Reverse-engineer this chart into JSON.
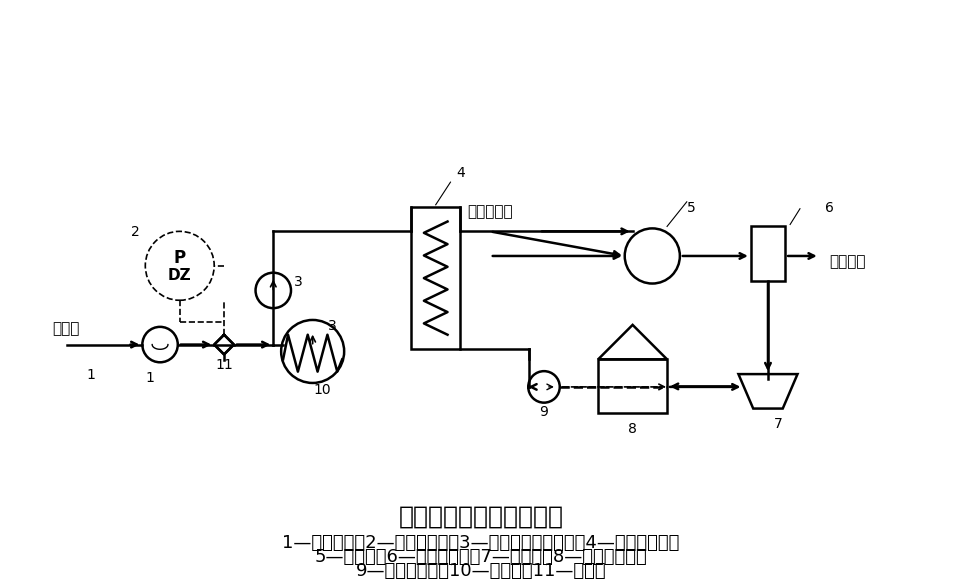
{
  "title": "氨水余热回收工艺流程图",
  "title_fontsize": 18,
  "legend_line1": "1—补给水泵；2—压力继电器；3—余热回收循环水泵；4—氨水冷却器；",
  "legend_line2": "5—集气罐；6—气液分离器；7—沉清槽；8—氨水中间槽；",
  "legend_line3": "9—氨水循环泵；10—热用户；11—电磁阀",
  "legend_fontsize": 13,
  "label_buchishui": "补给水",
  "label_penshui": "喷洒后氨水",
  "label_quchulengqi": "去初冷器",
  "bg_color": "#ffffff",
  "line_color": "#000000"
}
